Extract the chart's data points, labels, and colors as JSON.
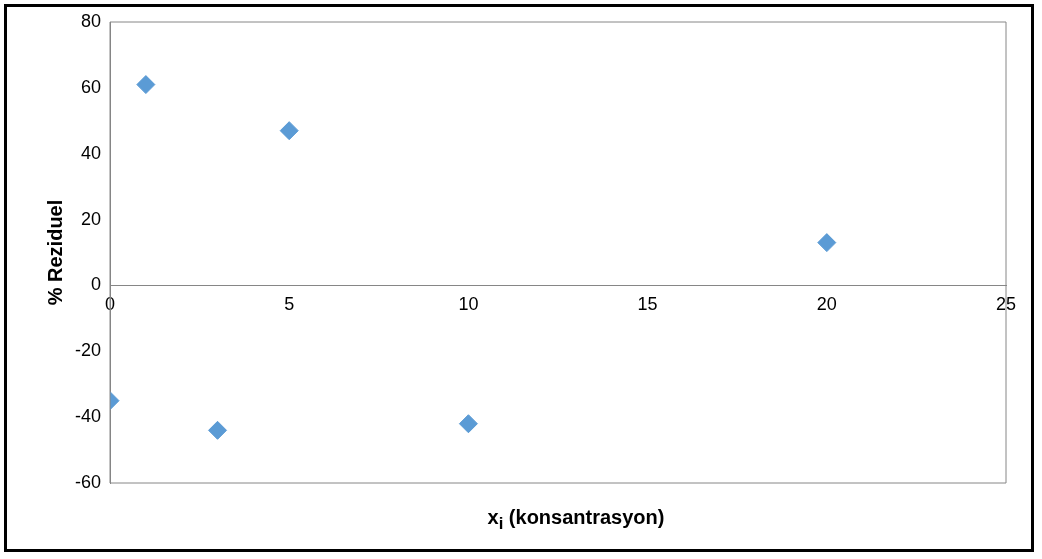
{
  "chart_data": {
    "type": "scatter",
    "xlabel": "x$_{i}$ (konsantrasyon)",
    "ylabel": "% Reziduel",
    "x": [
      0,
      1,
      3,
      5,
      10,
      20
    ],
    "series": [
      {
        "color": "#5b9bd5",
        "values": [
          -35,
          61,
          -44,
          47,
          -42,
          13
        ]
      }
    ],
    "xlim": [
      0,
      25
    ],
    "xticks": [
      0,
      5,
      10,
      15,
      20,
      25
    ],
    "ylim": [
      -60,
      80
    ],
    "yticks": [
      -60,
      -40,
      -20,
      0,
      20,
      40,
      60,
      80
    ],
    "grid": false,
    "legend": false,
    "marker": "diamond"
  }
}
